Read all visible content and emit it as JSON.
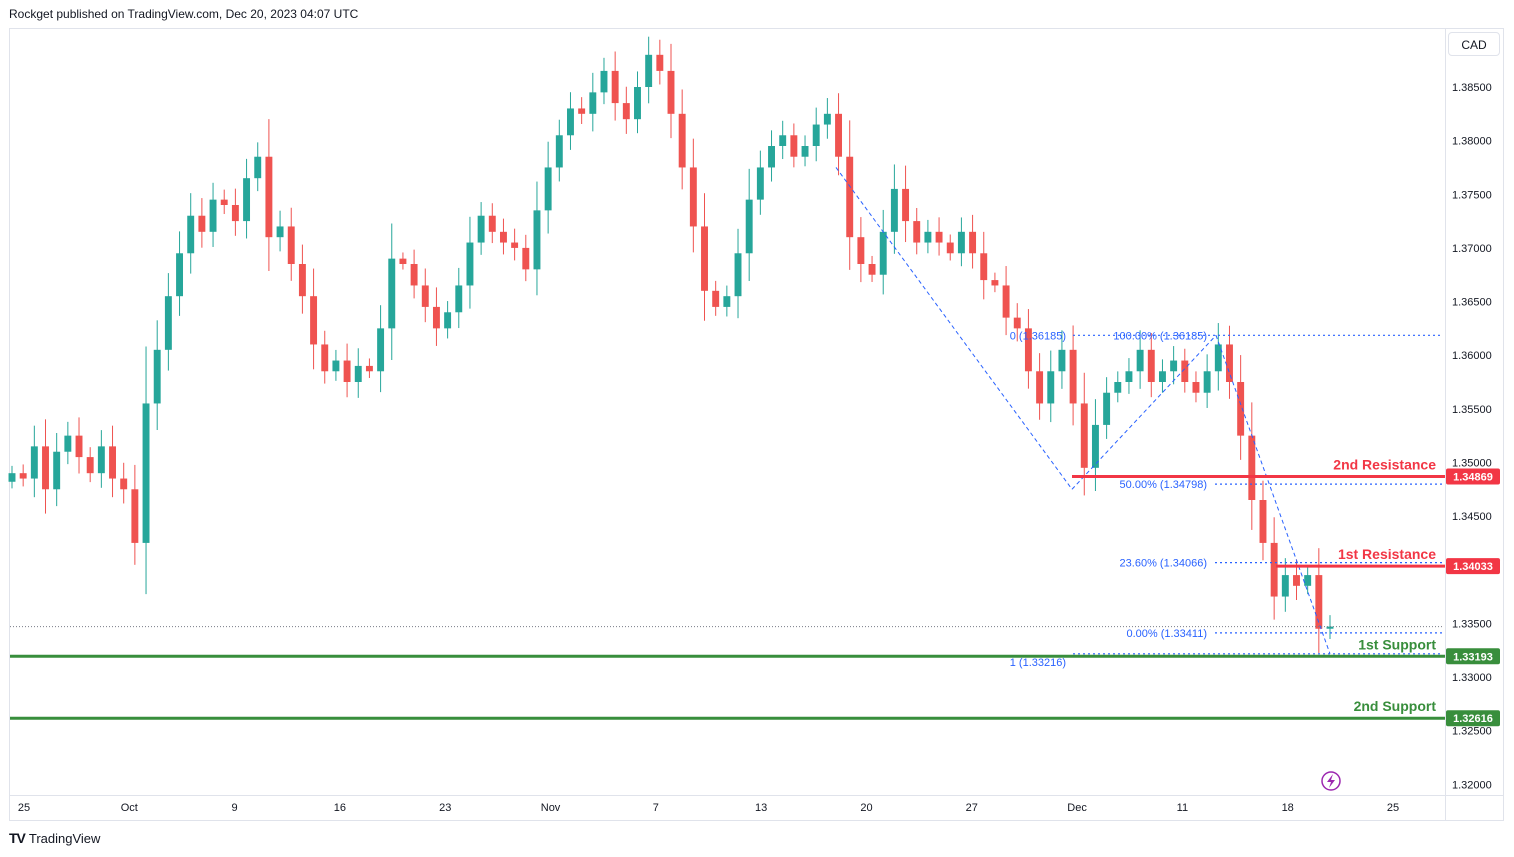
{
  "header": {
    "publisher_line": "Rockget published on TradingView.com, Dec 20, 2023 04:07 UTC"
  },
  "currency_button": {
    "label": "CAD"
  },
  "footer": {
    "logo_text": "TradingView"
  },
  "colors": {
    "up": "#26a69a",
    "down": "#ef5350",
    "fib": "#2962ff",
    "resistance": "#f23645",
    "support": "#388e3c",
    "grid": "#e0e3eb"
  },
  "icons": {
    "lightning": "lightning-icon",
    "logo": "tradingview-logo-icon"
  },
  "chart_data": {
    "type": "candlestick",
    "y_axis_ticks": [
      "1.38500",
      "1.38000",
      "1.37500",
      "1.37000",
      "1.36500",
      "1.36000",
      "1.35500",
      "1.35000",
      "1.34500",
      "1.33500",
      "1.33000",
      "1.32500",
      "1.32000"
    ],
    "x_axis_ticks": [
      "25",
      "Oct",
      "9",
      "16",
      "23",
      "Nov",
      "7",
      "13",
      "20",
      "27",
      "Dec",
      "11",
      "18",
      "25"
    ],
    "ylim": [
      1.319,
      1.3905
    ],
    "close_path": [
      1.349,
      1.3485,
      1.3515,
      1.3475,
      1.351,
      1.3525,
      1.3505,
      1.349,
      1.3515,
      1.3485,
      1.3475,
      1.3425,
      1.3555,
      1.3605,
      1.3655,
      1.3695,
      1.373,
      1.3715,
      1.3745,
      1.374,
      1.3725,
      1.3765,
      1.3785,
      1.371,
      1.372,
      1.3685,
      1.3655,
      1.361,
      1.3585,
      1.3595,
      1.3575,
      1.359,
      1.3585,
      1.3625,
      1.369,
      1.3685,
      1.3665,
      1.3645,
      1.3625,
      1.364,
      1.3665,
      1.3705,
      1.373,
      1.3715,
      1.3705,
      1.37,
      1.368,
      1.3735,
      1.3775,
      1.3805,
      1.383,
      1.3825,
      1.3845,
      1.3865,
      1.3835,
      1.382,
      1.385,
      1.388,
      1.3865,
      1.3825,
      1.3775,
      1.372,
      1.366,
      1.3645,
      1.3655,
      1.3695,
      1.3745,
      1.3775,
      1.3795,
      1.3805,
      1.3785,
      1.3795,
      1.3815,
      1.3825,
      1.3785,
      1.371,
      1.3685,
      1.3675,
      1.3715,
      1.3755,
      1.3725,
      1.3705,
      1.3715,
      1.3705,
      1.3695,
      1.3715,
      1.3695,
      1.367,
      1.3665,
      1.3635,
      1.3625,
      1.3585,
      1.3555,
      1.3585,
      1.3605,
      1.3555,
      1.3495,
      1.3535,
      1.3565,
      1.3575,
      1.3585,
      1.3605,
      1.3575,
      1.3585,
      1.3595,
      1.3575,
      1.3565,
      1.3585,
      1.361,
      1.3575,
      1.3525,
      1.3465,
      1.3425,
      1.3375,
      1.3395,
      1.3385,
      1.3395,
      1.3345,
      1.3347
    ],
    "fib_retracement": {
      "levels": [
        {
          "label": "100.00% (1.36185)",
          "value": 1.36185
        },
        {
          "label": "50.00% (1.34798)",
          "value": 1.34798
        },
        {
          "label": "23.60% (1.34066)",
          "value": 1.34066
        },
        {
          "label": "0.00% (1.33411)",
          "value": 1.33411
        }
      ]
    },
    "fib_extension": {
      "levels": [
        {
          "label": "0 (1.36185)",
          "value": 1.36185
        },
        {
          "label": "1 (1.33216)",
          "value": 1.33216
        }
      ]
    },
    "price_levels": [
      {
        "name": "2nd Resistance",
        "value": 1.34869,
        "badge": "1.34869",
        "kind": "resistance"
      },
      {
        "name": "1st Resistance",
        "value": 1.34033,
        "badge": "1.34033",
        "kind": "resistance"
      },
      {
        "name": "1st Support",
        "value": 1.33193,
        "badge": "1.33193",
        "kind": "support"
      },
      {
        "name": "2nd Support",
        "value": 1.32616,
        "badge": "1.32616",
        "kind": "support"
      }
    ],
    "grid": false,
    "legend": "none"
  }
}
